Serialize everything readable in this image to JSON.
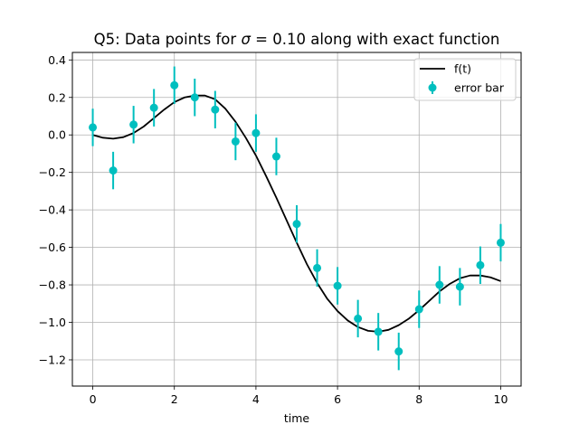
{
  "chart_data": {
    "type": "scatter",
    "title": "Q5: Data points for σ = 0.10 along with exact function",
    "title_pre": "Q5: Data points for ",
    "title_sigma": "σ",
    "title_post": " = 0.10 along with exact function",
    "xlabel": "time",
    "ylabel": "",
    "xlim": [
      -0.5,
      10.5
    ],
    "ylim": [
      -1.34,
      0.44
    ],
    "xticks": [
      0,
      2,
      4,
      6,
      8,
      10
    ],
    "xtick_labels": [
      "0",
      "2",
      "4",
      "6",
      "8",
      "10"
    ],
    "yticks": [
      0.4,
      0.2,
      0.0,
      -0.2,
      -0.4,
      -0.6,
      -0.8,
      -1.0,
      -1.2
    ],
    "ytick_labels": [
      "0.4",
      "0.2",
      "0.0",
      "−0.2",
      "−0.4",
      "−0.6",
      "−0.8",
      "−1.0",
      "−1.2"
    ],
    "grid": true,
    "legend_position": "top-right",
    "series": [
      {
        "name": "f(t)",
        "kind": "line",
        "color": "#000000",
        "x": [
          0,
          0.25,
          0.5,
          0.75,
          1,
          1.25,
          1.5,
          1.75,
          2,
          2.25,
          2.5,
          2.75,
          3,
          3.25,
          3.5,
          3.75,
          4,
          4.25,
          4.5,
          4.75,
          5,
          5.25,
          5.5,
          5.75,
          6,
          6.25,
          6.5,
          6.75,
          7,
          7.25,
          7.5,
          7.75,
          8,
          8.25,
          8.5,
          8.75,
          9,
          9.25,
          9.5,
          9.75,
          10
        ],
        "y": [
          0.0,
          -0.015,
          -0.02,
          -0.012,
          0.01,
          0.045,
          0.09,
          0.135,
          0.175,
          0.2,
          0.21,
          0.21,
          0.19,
          0.14,
          0.07,
          -0.015,
          -0.11,
          -0.22,
          -0.335,
          -0.455,
          -0.575,
          -0.69,
          -0.79,
          -0.875,
          -0.94,
          -0.99,
          -1.025,
          -1.045,
          -1.05,
          -1.04,
          -1.015,
          -0.98,
          -0.935,
          -0.885,
          -0.835,
          -0.795,
          -0.765,
          -0.75,
          -0.75,
          -0.76,
          -0.78
        ]
      },
      {
        "name": "error bar",
        "kind": "errorbar",
        "color": "#00bfbf",
        "error": 0.1,
        "x": [
          0,
          0.5,
          1,
          1.5,
          2,
          2.5,
          3,
          3.5,
          4,
          4.5,
          5,
          5.5,
          6,
          6.5,
          7,
          7.5,
          8,
          8.5,
          9,
          9.5,
          10
        ],
        "y": [
          0.04,
          -0.19,
          0.055,
          0.145,
          0.265,
          0.2,
          0.135,
          -0.035,
          0.01,
          -0.115,
          -0.475,
          -0.71,
          -0.805,
          -0.98,
          -1.05,
          -1.155,
          -0.93,
          -0.8,
          -0.81,
          -0.695,
          -0.575
        ]
      }
    ]
  }
}
